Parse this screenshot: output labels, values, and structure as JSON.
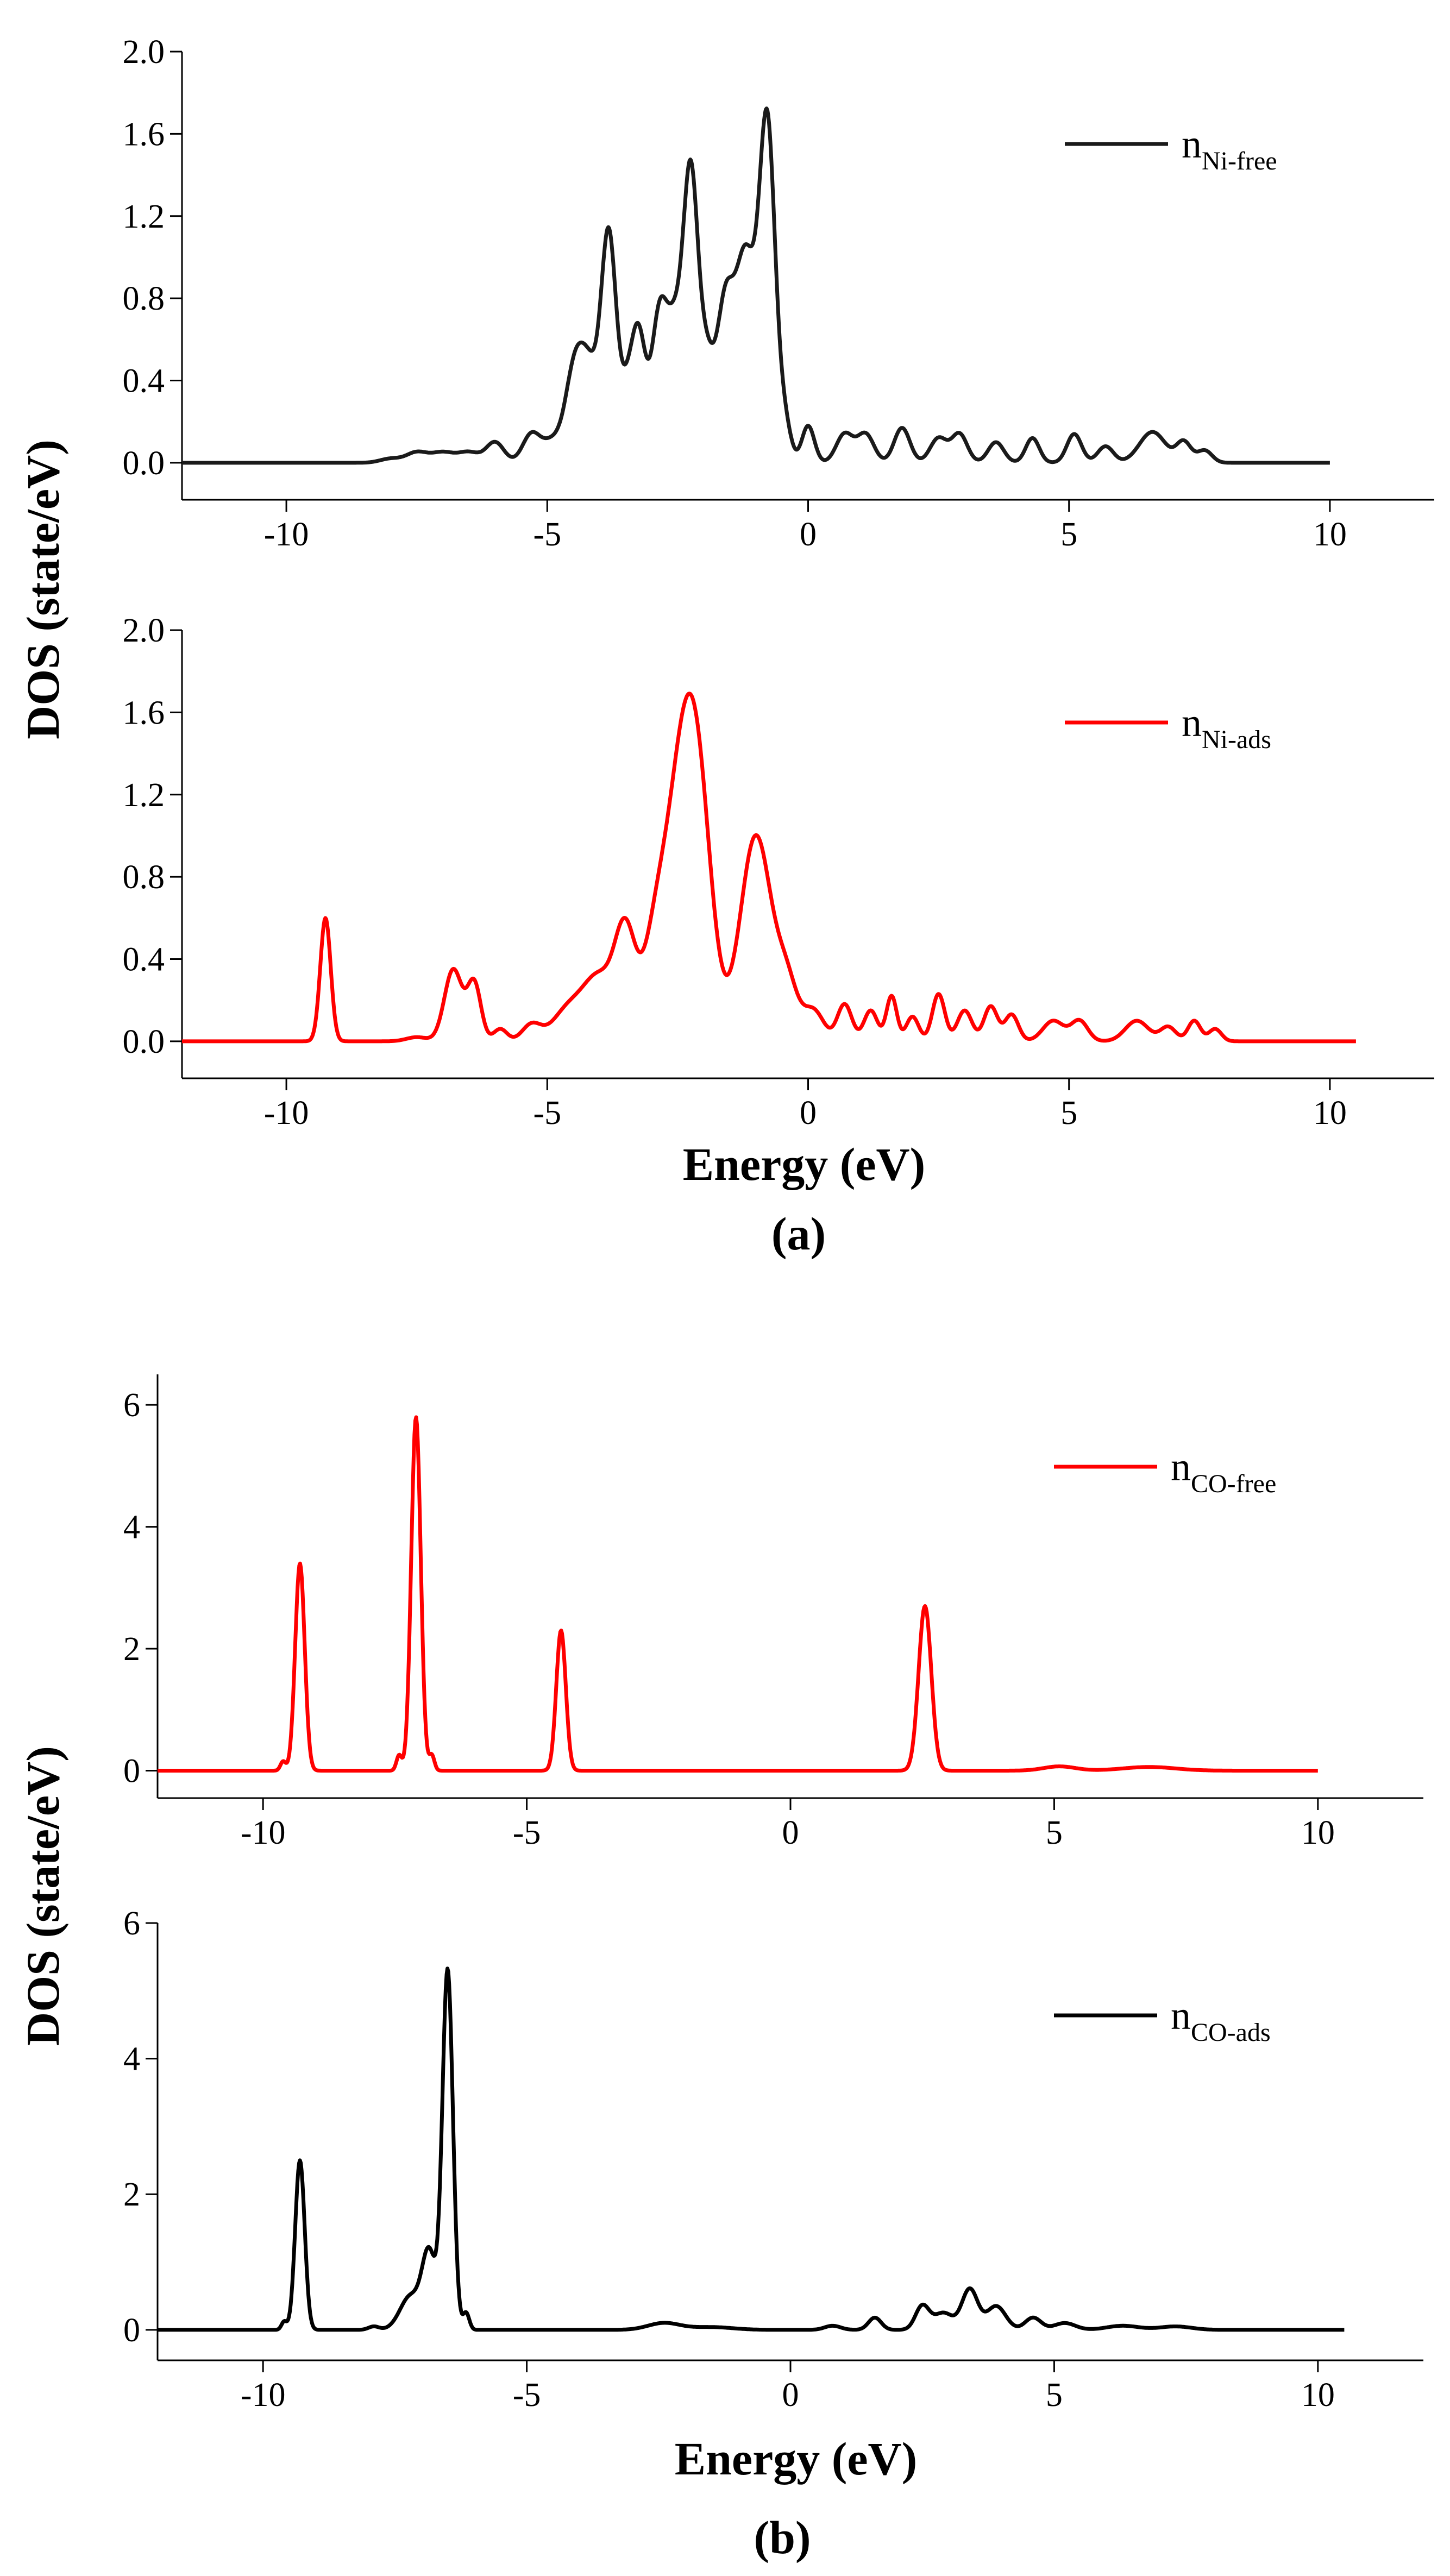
{
  "figure": {
    "panel_a_label": "(a)",
    "panel_b_label": "(b)",
    "ylabel_a": "DOS (state/eV)",
    "ylabel_b": "DOS (state/eV)",
    "xlabel_a": "Energy (eV)",
    "xlabel_b": "Energy (eV)"
  },
  "chart_data": [
    {
      "id": "ni_free",
      "type": "line",
      "title": "",
      "xlabel": "",
      "ylabel": "",
      "xlim": [
        -12,
        12
      ],
      "ylim": [
        -0.18,
        2.0
      ],
      "xticks": [
        -10,
        -5,
        0,
        5,
        10
      ],
      "xtick_labels": [
        "-10",
        "-5",
        "0",
        "5",
        "10"
      ],
      "yticks": [
        0,
        0.4,
        0.8,
        1.2,
        1.6,
        2.0
      ],
      "ytick_labels": [
        "0.0",
        "0.4",
        "0.8",
        "1.2",
        "1.6",
        "2.0"
      ],
      "legend": {
        "base": "n",
        "sub": "Ni-free",
        "position": "top-right"
      },
      "color": "#1a1a1a",
      "series": [
        {
          "name": "nNi-free",
          "x_range": [
            -12,
            10
          ],
          "peaks": [
            [
              -8.0,
              0.02,
              0.2
            ],
            [
              -7.5,
              0.05,
              0.2
            ],
            [
              -7.0,
              0.05,
              0.22
            ],
            [
              -6.5,
              0.05,
              0.2
            ],
            [
              -6.0,
              0.1,
              0.17
            ],
            [
              -5.3,
              0.14,
              0.17
            ],
            [
              -4.9,
              0.1,
              0.18
            ],
            [
              -4.5,
              0.36,
              0.17
            ],
            [
              -4.2,
              0.45,
              0.2
            ],
            [
              -3.82,
              1.05,
              0.14
            ],
            [
              -3.5,
              0.28,
              0.14
            ],
            [
              -3.25,
              0.6,
              0.14
            ],
            [
              -2.85,
              0.7,
              0.15
            ],
            [
              -2.55,
              0.58,
              0.15
            ],
            [
              -2.25,
              1.35,
              0.14
            ],
            [
              -1.95,
              0.45,
              0.14
            ],
            [
              -1.6,
              0.7,
              0.16
            ],
            [
              -1.2,
              1.0,
              0.2
            ],
            [
              -0.78,
              1.6,
              0.15
            ],
            [
              -0.45,
              0.18,
              0.12
            ],
            [
              0.0,
              0.18,
              0.12
            ],
            [
              0.7,
              0.14,
              0.16
            ],
            [
              1.1,
              0.14,
              0.16
            ],
            [
              1.8,
              0.17,
              0.15
            ],
            [
              2.5,
              0.12,
              0.16
            ],
            [
              2.9,
              0.14,
              0.15
            ],
            [
              3.6,
              0.1,
              0.15
            ],
            [
              4.3,
              0.12,
              0.13
            ],
            [
              5.1,
              0.14,
              0.14
            ],
            [
              5.7,
              0.08,
              0.15
            ],
            [
              6.6,
              0.15,
              0.25
            ],
            [
              7.2,
              0.1,
              0.14
            ],
            [
              7.6,
              0.06,
              0.14
            ]
          ]
        }
      ]
    },
    {
      "id": "ni_ads",
      "type": "line",
      "title": "",
      "xlabel": "Energy (eV)",
      "ylabel": "",
      "xlim": [
        -12,
        12
      ],
      "ylim": [
        -0.18,
        2.0
      ],
      "xticks": [
        -10,
        -5,
        0,
        5,
        10
      ],
      "xtick_labels": [
        "-10",
        "-5",
        "0",
        "5",
        "10"
      ],
      "yticks": [
        0,
        0.4,
        0.8,
        1.2,
        1.6,
        2.0
      ],
      "ytick_labels": [
        "0.0",
        "0.4",
        "0.8",
        "1.2",
        "1.6",
        "2.0"
      ],
      "legend": {
        "base": "n",
        "sub": "Ni-ads",
        "position": "top-right"
      },
      "color": "#ff0000",
      "series": [
        {
          "name": "nNi-ads",
          "x_range": [
            -12,
            10.5
          ],
          "peaks": [
            [
              -9.25,
              0.6,
              0.1
            ],
            [
              -7.5,
              0.02,
              0.2
            ],
            [
              -6.8,
              0.35,
              0.17
            ],
            [
              -6.4,
              0.28,
              0.13
            ],
            [
              -5.9,
              0.06,
              0.13
            ],
            [
              -5.3,
              0.08,
              0.18
            ],
            [
              -4.6,
              0.15,
              0.3
            ],
            [
              -4.0,
              0.3,
              0.3
            ],
            [
              -3.5,
              0.5,
              0.2
            ],
            [
              -2.9,
              0.55,
              0.24
            ],
            [
              -2.5,
              0.7,
              0.24
            ],
            [
              -2.15,
              1.35,
              0.28
            ],
            [
              -1.0,
              1.0,
              0.3
            ],
            [
              -0.4,
              0.25,
              0.2
            ],
            [
              0.1,
              0.15,
              0.2
            ],
            [
              0.7,
              0.18,
              0.14
            ],
            [
              1.2,
              0.15,
              0.13
            ],
            [
              1.6,
              0.22,
              0.1
            ],
            [
              2.0,
              0.12,
              0.12
            ],
            [
              2.5,
              0.23,
              0.12
            ],
            [
              3.0,
              0.15,
              0.14
            ],
            [
              3.5,
              0.17,
              0.13
            ],
            [
              3.9,
              0.13,
              0.13
            ],
            [
              4.7,
              0.1,
              0.2
            ],
            [
              5.2,
              0.1,
              0.16
            ],
            [
              6.3,
              0.1,
              0.22
            ],
            [
              6.9,
              0.07,
              0.15
            ],
            [
              7.4,
              0.1,
              0.12
            ],
            [
              7.8,
              0.06,
              0.12
            ]
          ]
        }
      ]
    },
    {
      "id": "co_free",
      "type": "line",
      "title": "",
      "xlabel": "",
      "ylabel": "",
      "xlim": [
        -12,
        12
      ],
      "ylim": [
        -0.45,
        6.5
      ],
      "xticks": [
        -10,
        -5,
        0,
        5,
        10
      ],
      "xtick_labels": [
        "-10",
        "-5",
        "0",
        "5",
        "10"
      ],
      "yticks": [
        0,
        2,
        4,
        6
      ],
      "ytick_labels": [
        "0",
        "2",
        "4",
        "6"
      ],
      "legend": {
        "base": "n",
        "sub": "CO-free",
        "position": "top-right"
      },
      "color": "#ff0000",
      "series": [
        {
          "name": "nCO-free",
          "x_range": [
            -12,
            10
          ],
          "peaks": [
            [
              -9.3,
              3.4,
              0.09
            ],
            [
              -9.62,
              0.15,
              0.05
            ],
            [
              -7.1,
              5.8,
              0.09
            ],
            [
              -7.42,
              0.25,
              0.05
            ],
            [
              -6.8,
              0.25,
              0.05
            ],
            [
              -4.35,
              2.3,
              0.09
            ],
            [
              2.55,
              2.7,
              0.12
            ],
            [
              5.1,
              0.07,
              0.3
            ],
            [
              6.8,
              0.06,
              0.5
            ]
          ]
        }
      ]
    },
    {
      "id": "co_ads",
      "type": "line",
      "title": "",
      "xlabel": "Energy (eV)",
      "ylabel": "",
      "xlim": [
        -12,
        12
      ],
      "ylim": [
        -0.45,
        6.0
      ],
      "xticks": [
        -10,
        -5,
        0,
        5,
        10
      ],
      "xtick_labels": [
        "-10",
        "-5",
        "0",
        "5",
        "10"
      ],
      "yticks": [
        0,
        2,
        4,
        6
      ],
      "ytick_labels": [
        "0",
        "2",
        "4",
        "6"
      ],
      "legend": {
        "base": "n",
        "sub": "CO-ads",
        "position": "top-right"
      },
      "color": "#000000",
      "series": [
        {
          "name": "nCO-ads",
          "x_range": [
            -12,
            10.5
          ],
          "peaks": [
            [
              -9.3,
              2.5,
              0.09
            ],
            [
              -9.6,
              0.12,
              0.05
            ],
            [
              -7.9,
              0.05,
              0.1
            ],
            [
              -7.2,
              0.5,
              0.2
            ],
            [
              -6.85,
              1.1,
              0.13
            ],
            [
              -6.5,
              5.3,
              0.1
            ],
            [
              -6.15,
              0.25,
              0.06
            ],
            [
              -2.4,
              0.1,
              0.3
            ],
            [
              -1.5,
              0.04,
              0.4
            ],
            [
              0.8,
              0.06,
              0.15
            ],
            [
              1.6,
              0.18,
              0.12
            ],
            [
              2.5,
              0.35,
              0.13
            ],
            [
              2.9,
              0.25,
              0.18
            ],
            [
              3.4,
              0.6,
              0.15
            ],
            [
              3.9,
              0.35,
              0.18
            ],
            [
              4.6,
              0.18,
              0.15
            ],
            [
              5.2,
              0.1,
              0.2
            ],
            [
              6.3,
              0.06,
              0.3
            ],
            [
              7.3,
              0.05,
              0.3
            ]
          ]
        }
      ]
    }
  ]
}
